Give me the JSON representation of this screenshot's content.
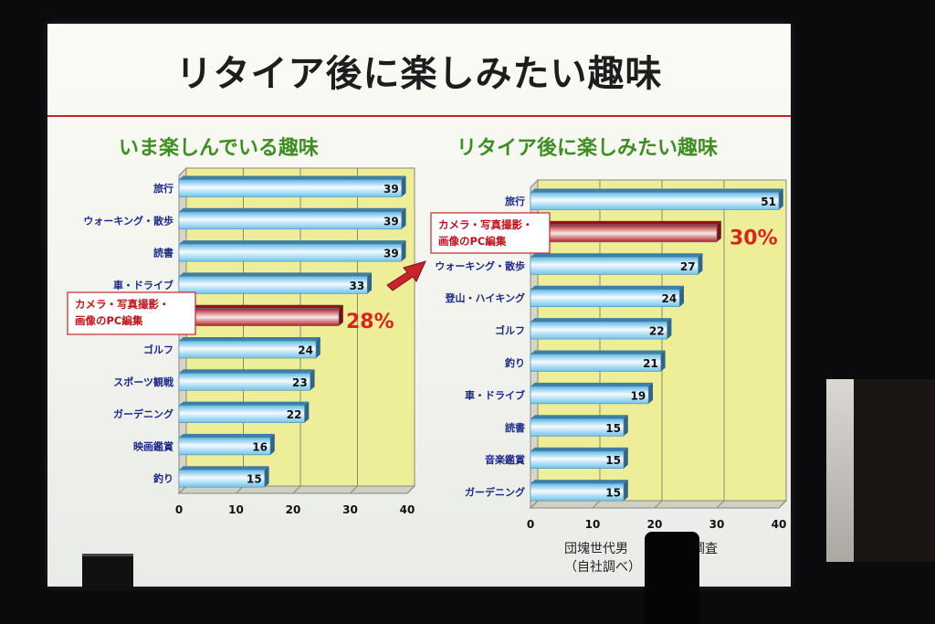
{
  "slide": {
    "title": "リタイア後に楽しみたい趣味",
    "note_line1": "団塊世代男　　　する調査",
    "note_line2": "（自社調べ）"
  },
  "colors": {
    "bar_blue": "#8fd3ef",
    "bar_highlight": "#c8242b",
    "plot_bg": "#eeee99",
    "title_rule": "#c2262a",
    "subtitle_green": "#3f8e22",
    "category_blue": "#1d2a8a"
  },
  "chart_data": [
    {
      "type": "bar",
      "orientation": "horizontal",
      "title": "いま楽しんでいる趣味",
      "categories": [
        "旅行",
        "ウォーキング・散歩",
        "読書",
        "車・ドライブ",
        "カメラ・写真撮影・画像のPC編集",
        "ゴルフ",
        "スポーツ観戦",
        "ガーデニング",
        "映画鑑賞",
        "釣り"
      ],
      "values": [
        39,
        39,
        39,
        33,
        28,
        24,
        23,
        22,
        16,
        15
      ],
      "value_labels": [
        "39",
        "39",
        "39",
        "33",
        "",
        "24",
        "23",
        "22",
        "16",
        "15"
      ],
      "highlight_index": 4,
      "highlight_label": [
        "カメラ・写真撮影・",
        "画像のPC編集"
      ],
      "highlight_value_label": "28%",
      "xlim": [
        0,
        40
      ],
      "xticks": [
        0,
        10,
        20,
        30,
        40
      ],
      "grid": true
    },
    {
      "type": "bar",
      "orientation": "horizontal",
      "title": "リタイア後に楽しみたい趣味",
      "categories": [
        "旅行",
        "カメラ・写真撮影・画像のPC編集",
        "ウォーキング・散歩",
        "登山・ハイキング",
        "ゴルフ",
        "釣り",
        "車・ドライブ",
        "読書",
        "音楽鑑賞",
        "ガーデニング"
      ],
      "values": [
        51,
        30,
        27,
        24,
        22,
        21,
        19,
        15,
        15,
        15
      ],
      "value_labels": [
        "51",
        "",
        "27",
        "24",
        "22",
        "21",
        "19",
        "15",
        "15",
        "15"
      ],
      "highlight_index": 1,
      "highlight_label": [
        "カメラ・写真撮影・",
        "画像のPC編集"
      ],
      "highlight_value_label": "30%",
      "xlim": [
        0,
        40
      ],
      "xticks": [
        0,
        10,
        20,
        30,
        40
      ],
      "grid": true
    }
  ]
}
